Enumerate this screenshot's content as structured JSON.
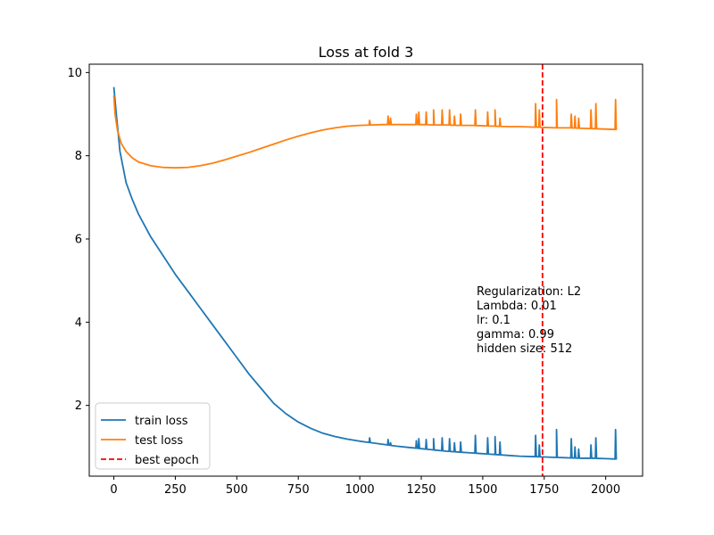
{
  "chart_data": {
    "type": "line",
    "title": "Loss at fold 3",
    "xlabel": "",
    "ylabel": "",
    "xlim": [
      -100,
      2150
    ],
    "ylim": [
      0.3,
      10.2
    ],
    "xticks": [
      0,
      250,
      500,
      750,
      1000,
      1250,
      1500,
      1750,
      2000
    ],
    "yticks": [
      2,
      4,
      6,
      8,
      10
    ],
    "grid": false,
    "legend_position": "lower-left",
    "best_epoch": 1743,
    "annotation_lines": [
      "Regularization: L2",
      "Lambda: 0.01",
      "lr: 0.1",
      "gamma: 0.99",
      "hidden size: 512"
    ],
    "series": [
      {
        "name": "train loss",
        "color": "#1f77b4",
        "style": "solid",
        "x": [
          0,
          10,
          25,
          50,
          75,
          100,
          150,
          200,
          250,
          300,
          350,
          400,
          450,
          500,
          550,
          600,
          650,
          700,
          750,
          800,
          850,
          900,
          950,
          1000,
          1050,
          1100,
          1150,
          1200,
          1250,
          1300,
          1350,
          1400,
          1450,
          1500,
          1550,
          1600,
          1650,
          1700,
          1750,
          1800,
          1850,
          1900,
          1950,
          2000,
          2045
        ],
        "y": [
          9.65,
          9.0,
          8.1,
          7.35,
          6.95,
          6.6,
          6.05,
          5.6,
          5.15,
          4.75,
          4.35,
          3.95,
          3.55,
          3.15,
          2.75,
          2.4,
          2.05,
          1.8,
          1.6,
          1.45,
          1.33,
          1.25,
          1.19,
          1.14,
          1.1,
          1.06,
          1.02,
          0.99,
          0.96,
          0.93,
          0.9,
          0.88,
          0.86,
          0.84,
          0.82,
          0.8,
          0.78,
          0.77,
          0.76,
          0.75,
          0.74,
          0.73,
          0.73,
          0.72,
          0.71
        ],
        "spikes": [
          [
            1040,
            1.22
          ],
          [
            1115,
            1.18
          ],
          [
            1125,
            1.1
          ],
          [
            1230,
            1.15
          ],
          [
            1240,
            1.2
          ],
          [
            1270,
            1.18
          ],
          [
            1300,
            1.2
          ],
          [
            1335,
            1.22
          ],
          [
            1365,
            1.2
          ],
          [
            1385,
            1.1
          ],
          [
            1410,
            1.12
          ],
          [
            1470,
            1.28
          ],
          [
            1520,
            1.22
          ],
          [
            1550,
            1.25
          ],
          [
            1570,
            1.12
          ],
          [
            1715,
            1.28
          ],
          [
            1730,
            1.05
          ],
          [
            1800,
            1.42
          ],
          [
            1860,
            1.2
          ],
          [
            1875,
            1.0
          ],
          [
            1890,
            0.95
          ],
          [
            1940,
            1.05
          ],
          [
            1960,
            1.22
          ],
          [
            2040,
            1.42
          ]
        ]
      },
      {
        "name": "test loss",
        "color": "#ff7f0e",
        "style": "solid",
        "x": [
          0,
          5,
          15,
          30,
          50,
          75,
          100,
          150,
          200,
          250,
          300,
          350,
          400,
          450,
          500,
          550,
          600,
          650,
          700,
          750,
          800,
          850,
          900,
          950,
          1000,
          1050,
          1100,
          1150,
          1200,
          1250,
          1300,
          1350,
          1400,
          1450,
          1500,
          1550,
          1600,
          1650,
          1700,
          1750,
          1800,
          1850,
          1900,
          1950,
          2000,
          2045
        ],
        "y": [
          9.45,
          9.0,
          8.6,
          8.3,
          8.1,
          7.95,
          7.85,
          7.76,
          7.72,
          7.71,
          7.72,
          7.76,
          7.82,
          7.9,
          7.99,
          8.08,
          8.18,
          8.28,
          8.38,
          8.47,
          8.55,
          8.62,
          8.67,
          8.71,
          8.73,
          8.74,
          8.75,
          8.75,
          8.75,
          8.75,
          8.74,
          8.74,
          8.73,
          8.73,
          8.72,
          8.71,
          8.7,
          8.7,
          8.69,
          8.68,
          8.67,
          8.67,
          8.66,
          8.65,
          8.64,
          8.63
        ],
        "spikes": [
          [
            1040,
            8.85
          ],
          [
            1115,
            8.95
          ],
          [
            1125,
            8.9
          ],
          [
            1230,
            9.0
          ],
          [
            1240,
            9.05
          ],
          [
            1270,
            9.05
          ],
          [
            1300,
            9.1
          ],
          [
            1335,
            9.1
          ],
          [
            1365,
            9.1
          ],
          [
            1385,
            8.95
          ],
          [
            1410,
            9.0
          ],
          [
            1470,
            9.1
          ],
          [
            1520,
            9.05
          ],
          [
            1550,
            9.1
          ],
          [
            1570,
            8.9
          ],
          [
            1715,
            9.25
          ],
          [
            1730,
            9.1
          ],
          [
            1800,
            9.35
          ],
          [
            1860,
            9.0
          ],
          [
            1875,
            8.95
          ],
          [
            1890,
            8.9
          ],
          [
            1940,
            9.1
          ],
          [
            1960,
            9.25
          ],
          [
            2040,
            9.35
          ]
        ]
      },
      {
        "name": "best epoch",
        "color": "#ff0000",
        "style": "dashed"
      }
    ]
  }
}
